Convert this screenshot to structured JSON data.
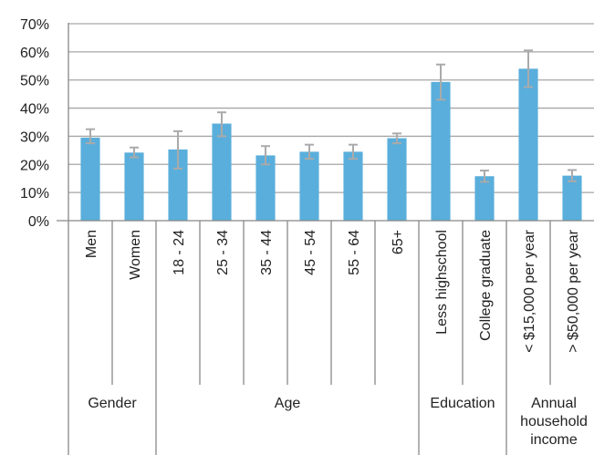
{
  "chart_data": {
    "type": "bar",
    "y_ticks": [
      "0%",
      "10%",
      "20%",
      "30%",
      "40%",
      "50%",
      "60%",
      "70%"
    ],
    "ylim": [
      0,
      70
    ],
    "grid": true,
    "bar_color": "#5aaedb",
    "error_bar_color": "#aaaaaa",
    "categories": [
      "Men",
      "Women",
      "18 - 24",
      "25 - 34",
      "35 - 44",
      "45 - 54",
      "55 - 64",
      "65+",
      "Less highschool",
      "College graduate",
      "< $15,000 per year",
      "> $50,000 per year"
    ],
    "values": [
      29.5,
      24.2,
      25.3,
      34.5,
      23.2,
      24.5,
      24.5,
      29.3,
      49.3,
      15.8,
      54.0,
      16.0
    ],
    "error_low": [
      27.5,
      22.5,
      18.5,
      30.0,
      20.0,
      22.0,
      22.0,
      27.5,
      43.0,
      13.8,
      47.5,
      14.0
    ],
    "error_high": [
      32.5,
      26.0,
      31.8,
      38.5,
      26.5,
      27.0,
      27.0,
      31.0,
      55.5,
      17.8,
      60.5,
      18.0
    ],
    "groups": [
      {
        "label": "Gender",
        "start": 0,
        "end": 2
      },
      {
        "label": "Age",
        "start": 2,
        "end": 8
      },
      {
        "label": "Education",
        "start": 8,
        "end": 10
      },
      {
        "label": "Annual household income",
        "label_lines": [
          "Annual",
          "household",
          "income"
        ],
        "start": 10,
        "end": 12
      }
    ]
  }
}
